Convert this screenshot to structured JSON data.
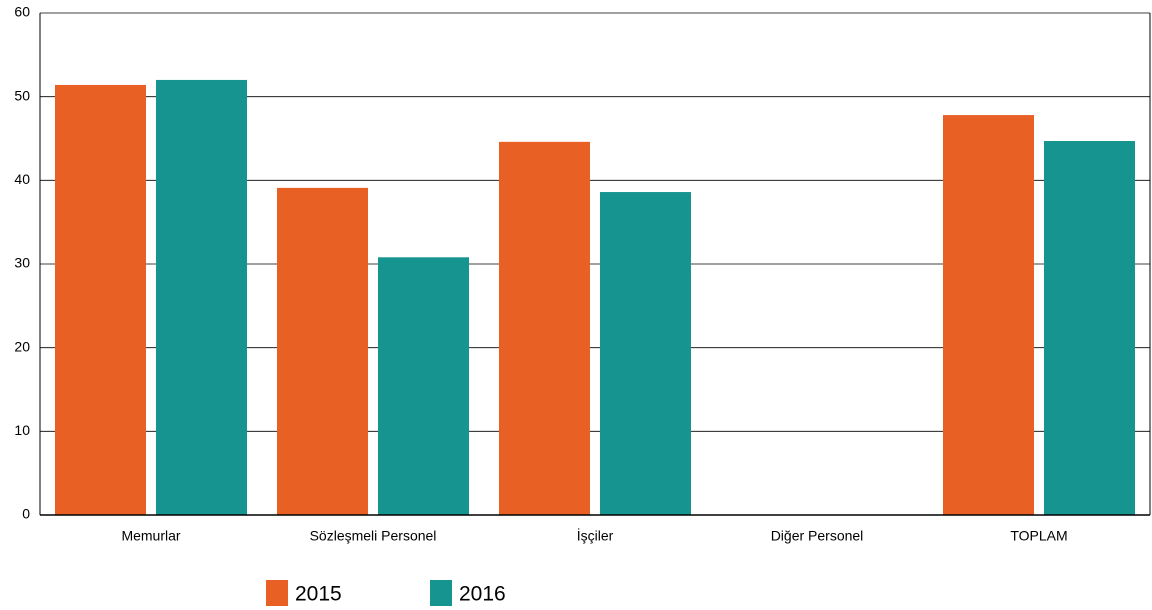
{
  "chart_data": {
    "type": "bar",
    "categories": [
      "Memurlar",
      "Sözleşmeli Personel",
      "İşçiler",
      "Diğer Personel",
      "TOPLAM"
    ],
    "series": [
      {
        "name": "2015",
        "color": "#e86024",
        "values": [
          51.4,
          39.1,
          44.6,
          0,
          47.8
        ]
      },
      {
        "name": "2016",
        "color": "#159490",
        "values": [
          52.0,
          30.8,
          38.6,
          0,
          44.7
        ]
      }
    ],
    "ylim": [
      0,
      60
    ],
    "yticks": [
      0,
      10,
      20,
      30,
      40,
      50,
      60
    ],
    "grid": true
  }
}
